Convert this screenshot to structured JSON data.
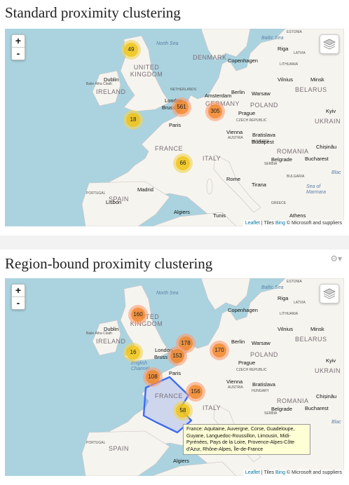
{
  "panels": [
    {
      "title": "Standard proximity clustering",
      "clusters": [
        {
          "count": "49",
          "color": "yellow"
        },
        {
          "count": "561",
          "color": "orange"
        },
        {
          "count": "305",
          "color": "orange"
        },
        {
          "count": "18",
          "color": "yellow"
        },
        {
          "count": "66",
          "color": "yellow"
        }
      ]
    },
    {
      "title": "Region-bound proximity clustering",
      "clusters": [
        {
          "count": "160",
          "color": "orange"
        },
        {
          "count": "178",
          "color": "orange"
        },
        {
          "count": "153",
          "color": "orange"
        },
        {
          "count": "170",
          "color": "orange"
        },
        {
          "count": "16",
          "color": "yellow"
        },
        {
          "count": "108",
          "color": "orange"
        },
        {
          "count": "156",
          "color": "orange"
        },
        {
          "count": "58",
          "color": "yellow"
        }
      ],
      "tooltip": "France: Aquitaine, Auvergne, Corse, Guadeloupe, Guyane, Languedoc-Roussillon, Limousin, Midi-Pyrénées, Pays de la Loire, Provence-Alpes-Côte d'Azur, Rhône-Alpes, Île-de-France"
    }
  ],
  "zoom": {
    "in": "+",
    "out": "-"
  },
  "attribution": {
    "leaflet": "Leaflet",
    "tiles": " | Tiles ",
    "bing": "Bing",
    "rest": " © Microsoft and suppliers"
  },
  "labels": {
    "north_sea": "North Sea",
    "baltic_sea": "Baltic Sea",
    "denmark": "DENMARK",
    "united_kingdom": "UNITED KINGDOM",
    "ireland": "IRELAND",
    "france": "FRANCE",
    "germany": "GERMANY",
    "poland": "POLAND",
    "belarus": "BELARUS",
    "ukraine": "UKRAIN",
    "spain": "SPAIN",
    "portugal": "PORTUGAL",
    "italy": "ITALY",
    "romania": "ROMANIA",
    "netherlands": "NETHERLANDS",
    "lithuania": "LITHUANIA",
    "latvia": "LATVIA",
    "estonia": "ESTONIA",
    "czech": "CZECH REPUBLIC",
    "austria": "AUSTRIA",
    "hungary": "HUNGARY",
    "serbia": "SERBIA",
    "bulgaria": "BULGARIA",
    "greece": "GREECE",
    "copenhagen": "Copenhagen",
    "riga": "Riga",
    "vilnius": "Vilnius",
    "minsk": "Minsk",
    "london": "London",
    "amsterdam": "Amsterdam",
    "berlin": "Berlin",
    "warsaw": "Warsaw",
    "brussels": "Bruss",
    "prague": "Prague",
    "paris": "Paris",
    "vienna": "Vienna",
    "bratislava": "Bratislava",
    "budapest": "Budapest",
    "kyiv": "Kyiv",
    "chisinau": "Chișinău",
    "belgrade": "Belgrade",
    "bucharest": "Bucharest",
    "rome": "Rome",
    "tirana": "Tirana",
    "madrid": "Madrid",
    "lisbon": "Lisbon",
    "algiers": "Algiers",
    "tunis": "Tunis",
    "athens": "Athens",
    "dublin": "Dublin",
    "baile_atha_cliath": "Baile Átha Cliath",
    "black_sea": "Blac",
    "sea_of_marmara": "Sea of Marmara",
    "english_channel": "English Channel"
  },
  "colors": {
    "water": "#aad3df",
    "land": "#f6f4ee",
    "polygon": "#3f6cf0"
  }
}
